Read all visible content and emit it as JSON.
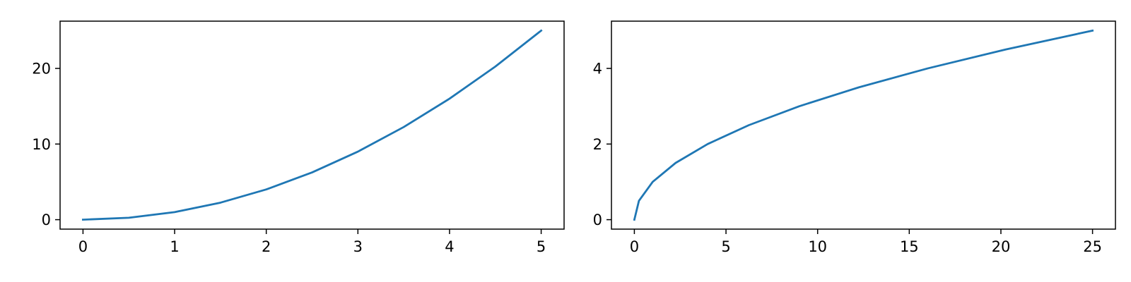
{
  "chart_data": [
    {
      "type": "line",
      "title": "",
      "xlabel": "",
      "ylabel": "",
      "xlim": [
        -0.25,
        5.25
      ],
      "ylim": [
        -1.25,
        26.25
      ],
      "xticks": [
        0,
        1,
        2,
        3,
        4,
        5
      ],
      "xtick_labels": [
        "0",
        "1",
        "2",
        "3",
        "4",
        "5"
      ],
      "yticks": [
        0,
        10,
        20
      ],
      "ytick_labels": [
        "0",
        "10",
        "20"
      ],
      "grid": false,
      "legend": "none",
      "series": [
        {
          "color": "#1f77b4",
          "x": [
            0,
            0.5,
            1,
            1.5,
            2,
            2.5,
            3,
            3.5,
            4,
            4.5,
            5
          ],
          "y": [
            0,
            0.25,
            1,
            2.25,
            4,
            6.25,
            9,
            12.25,
            16,
            20.25,
            25
          ]
        }
      ]
    },
    {
      "type": "line",
      "title": "",
      "xlabel": "",
      "ylabel": "",
      "xlim": [
        -1.25,
        26.25
      ],
      "ylim": [
        -0.25,
        5.25
      ],
      "xticks": [
        0,
        5,
        10,
        15,
        20,
        25
      ],
      "xtick_labels": [
        "0",
        "5",
        "10",
        "15",
        "20",
        "25"
      ],
      "yticks": [
        0,
        2,
        4
      ],
      "ytick_labels": [
        "0",
        "2",
        "4"
      ],
      "grid": false,
      "legend": "none",
      "series": [
        {
          "color": "#1f77b4",
          "x": [
            0,
            0.25,
            1,
            2.25,
            4,
            6.25,
            9,
            12.25,
            16,
            20.25,
            25
          ],
          "y": [
            0,
            0.5,
            1,
            1.5,
            2,
            2.5,
            3,
            3.5,
            4,
            4.5,
            5
          ]
        }
      ]
    }
  ]
}
